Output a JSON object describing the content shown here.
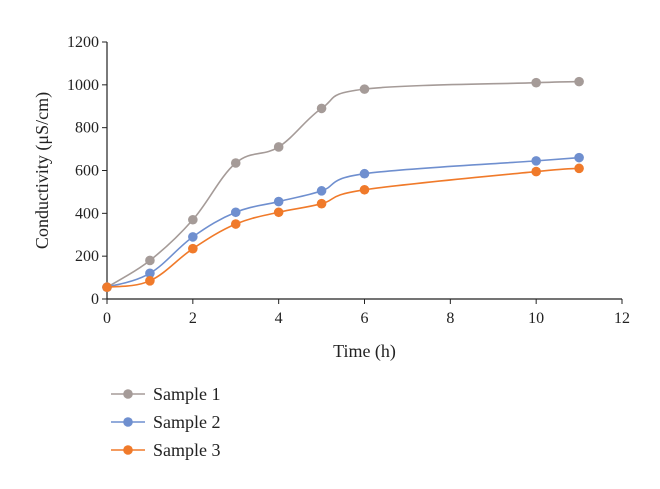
{
  "chart_data": {
    "type": "line",
    "title": "",
    "xlabel": "Time (h)",
    "ylabel": "Conductivity (μS/cm)",
    "xlim": [
      0,
      12
    ],
    "ylim": [
      0,
      1200
    ],
    "xticks": [
      0,
      2,
      4,
      6,
      8,
      10,
      12
    ],
    "yticks": [
      0,
      200,
      400,
      600,
      800,
      1000,
      1200
    ],
    "grid": false,
    "legend_position": "bottom-left",
    "x": [
      0,
      1,
      2,
      3,
      4,
      5,
      6,
      10,
      11
    ],
    "series": [
      {
        "name": "Sample 1",
        "color": "#a59b98",
        "values": [
          55,
          180,
          370,
          635,
          710,
          890,
          980,
          1010,
          1015
        ]
      },
      {
        "name": "Sample 2",
        "color": "#6f8fcf",
        "values": [
          55,
          120,
          290,
          405,
          455,
          505,
          585,
          645,
          660
        ]
      },
      {
        "name": "Sample 3",
        "color": "#f07a2a",
        "values": [
          55,
          85,
          235,
          350,
          405,
          445,
          510,
          595,
          610
        ]
      }
    ]
  }
}
